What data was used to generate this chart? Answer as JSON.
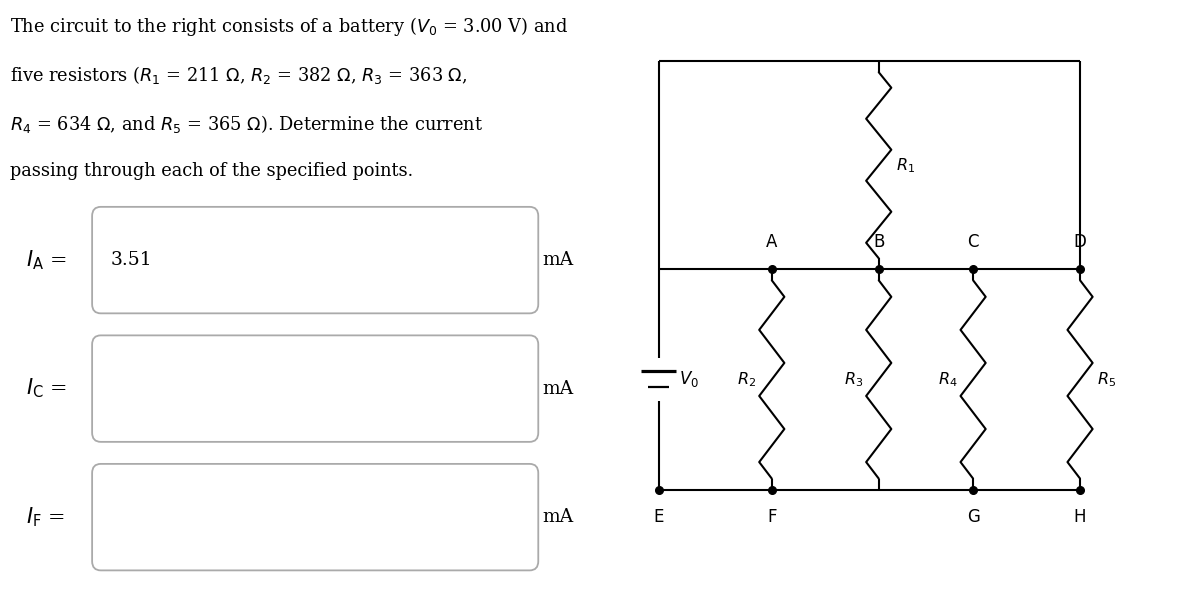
{
  "background": "#ffffff",
  "line_color": "#000000",
  "lw": 1.5,
  "title_lines": [
    "The circuit to the right consists of a battery ($V_0$ = 3.00 V) and",
    "five resistors ($R_1$ = 211 $\\Omega$, $R_2$ = 382 $\\Omega$, $R_3$ = 363 $\\Omega$,",
    "$R_4$ = 634 $\\Omega$, and $R_5$ = 365 $\\Omega$). Determine the current",
    "passing through each of the specified points."
  ],
  "IA_label": "$I_\\mathrm{A}$",
  "IA_value": "3.51",
  "IC_label": "$I_\\mathrm{C}$",
  "IF_label": "$I_\\mathrm{F}$",
  "unit": "mA",
  "V0_label": "$V_0$",
  "R1_label": "$R_1$",
  "R2_label": "$R_2$",
  "R3_label": "$R_3$",
  "R4_label": "$R_4$",
  "R5_label": "$R_5$",
  "point_labels_top": [
    "A",
    "B",
    "C",
    "D"
  ],
  "point_labels_bot": [
    "E",
    "F",
    "G",
    "H"
  ]
}
